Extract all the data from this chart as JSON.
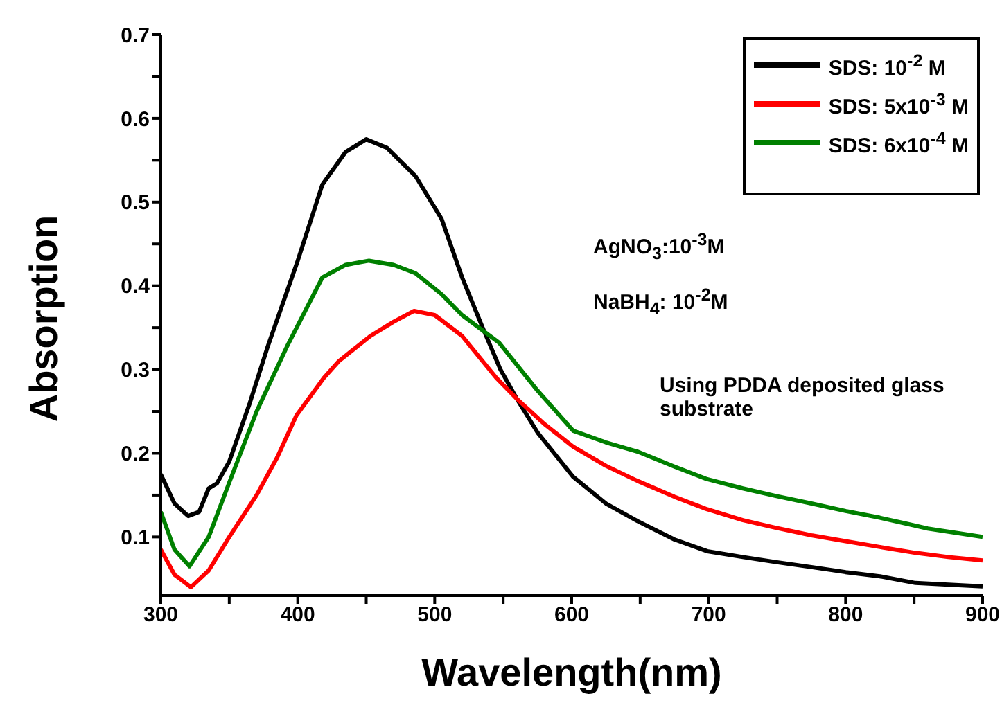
{
  "chart_data": {
    "type": "line",
    "xlabel": "Wavelength(nm)",
    "ylabel": "Absorption",
    "xlim": [
      300,
      900
    ],
    "ylim": [
      0.03,
      0.7
    ],
    "xticks": [
      300,
      {
        "value": 350,
        "label": null
      },
      400,
      {
        "value": 450,
        "label": null
      },
      500,
      {
        "value": 550,
        "label": null
      },
      600,
      {
        "value": 650,
        "label": null
      },
      700,
      {
        "value": 750,
        "label": null
      },
      800,
      {
        "value": 850,
        "label": null
      },
      900
    ],
    "yticks": [
      0.1,
      {
        "value": 0.15,
        "label": null
      },
      0.2,
      {
        "value": 0.25,
        "label": null
      },
      0.3,
      {
        "value": 0.35,
        "label": null
      },
      0.4,
      {
        "value": 0.45,
        "label": null
      },
      0.5,
      {
        "value": 0.55,
        "label": null
      },
      0.6,
      {
        "value": 0.65,
        "label": null
      },
      0.7
    ],
    "legend": "top right",
    "marker": "none",
    "line_style": "solid",
    "annotations": [
      "AgNO$_{3}$:10$^{-3}$M",
      "NaBH$_{4}$: 10$^{-2}$M",
      "Using PDDA deposited glass substrate"
    ],
    "series": [
      {
        "name": "SDS: 10$^{-2}$ M",
        "color": "#000000",
        "x": [
          300,
          310,
          320,
          328,
          335,
          341,
          350,
          365,
          378,
          400,
          418,
          435,
          450,
          465,
          486,
          505,
          520,
          535,
          548,
          560,
          575,
          601,
          625,
          648,
          675,
          699,
          725,
          749,
          775,
          800,
          825,
          851,
          875,
          900
        ],
        "values": [
          0.175,
          0.14,
          0.125,
          0.13,
          0.158,
          0.164,
          0.19,
          0.26,
          0.327,
          0.43,
          0.521,
          0.56,
          0.575,
          0.565,
          0.531,
          0.48,
          0.41,
          0.35,
          0.3,
          0.265,
          0.225,
          0.172,
          0.14,
          0.119,
          0.097,
          0.083,
          0.076,
          0.07,
          0.064,
          0.058,
          0.053,
          0.045,
          0.043,
          0.041
        ]
      },
      {
        "name": "SDS: 5x10$^{-3}$ M",
        "color": "#ff0000",
        "x": [
          300,
          310,
          322,
          335,
          350,
          370,
          385,
          399,
          419,
          430,
          453,
          470,
          485,
          500,
          520,
          545,
          560,
          580,
          601,
          625,
          648,
          675,
          699,
          725,
          749,
          775,
          800,
          825,
          851,
          875,
          900
        ],
        "values": [
          0.085,
          0.055,
          0.04,
          0.06,
          0.1,
          0.15,
          0.195,
          0.245,
          0.29,
          0.31,
          0.34,
          0.357,
          0.37,
          0.365,
          0.34,
          0.29,
          0.265,
          0.235,
          0.208,
          0.185,
          0.167,
          0.148,
          0.133,
          0.12,
          0.111,
          0.102,
          0.095,
          0.088,
          0.081,
          0.076,
          0.072
        ]
      },
      {
        "name": "SDS: 6x10$^{-4}$ M",
        "color": "#008000",
        "x": [
          300,
          310,
          321,
          335,
          350,
          370,
          392,
          418,
          435,
          452,
          470,
          486,
          505,
          520,
          547,
          575,
          601,
          625,
          648,
          675,
          699,
          725,
          749,
          775,
          800,
          825,
          844,
          860,
          880,
          900
        ],
        "values": [
          0.13,
          0.085,
          0.065,
          0.1,
          0.165,
          0.25,
          0.327,
          0.41,
          0.425,
          0.43,
          0.425,
          0.415,
          0.39,
          0.365,
          0.332,
          0.275,
          0.227,
          0.213,
          0.202,
          0.184,
          0.169,
          0.158,
          0.149,
          0.14,
          0.131,
          0.123,
          0.116,
          0.11,
          0.105,
          0.1
        ]
      }
    ]
  }
}
